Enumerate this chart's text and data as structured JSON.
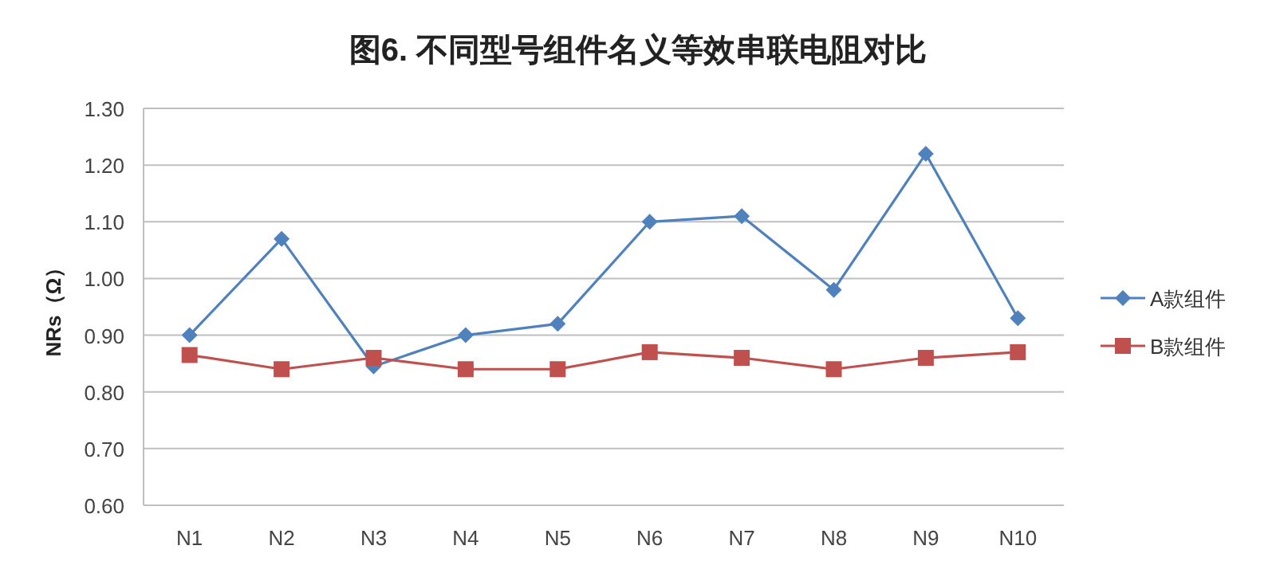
{
  "chart_data": {
    "type": "line",
    "title": "图6. 不同型号组件名义等效串联电阻对比",
    "ylabel": "NRs（Ω）",
    "categories": [
      "N1",
      "N2",
      "N3",
      "N4",
      "N5",
      "N6",
      "N7",
      "N8",
      "N9",
      "N10"
    ],
    "series": [
      {
        "name": "A款组件",
        "color": "#4f81bd",
        "marker": "diamond",
        "values": [
          0.9,
          1.07,
          0.845,
          0.9,
          0.92,
          1.1,
          1.11,
          0.98,
          1.22,
          0.93
        ]
      },
      {
        "name": "B款组件",
        "color": "#c0504d",
        "marker": "square",
        "values": [
          0.865,
          0.84,
          0.86,
          0.84,
          0.84,
          0.87,
          0.86,
          0.84,
          0.86,
          0.87
        ]
      }
    ],
    "ylim": [
      0.6,
      1.3
    ],
    "yticks": [
      {
        "value": 0.6,
        "label": "0.60"
      },
      {
        "value": 0.7,
        "label": "0.70"
      },
      {
        "value": 0.8,
        "label": "0.80"
      },
      {
        "value": 0.9,
        "label": "0.90"
      },
      {
        "value": 1.0,
        "label": "1.00"
      },
      {
        "value": 1.1,
        "label": "1.10"
      },
      {
        "value": 1.2,
        "label": "1.20"
      },
      {
        "value": 1.3,
        "label": "1.30"
      }
    ],
    "grid": "y",
    "legend": "right",
    "line_style": "solid"
  }
}
